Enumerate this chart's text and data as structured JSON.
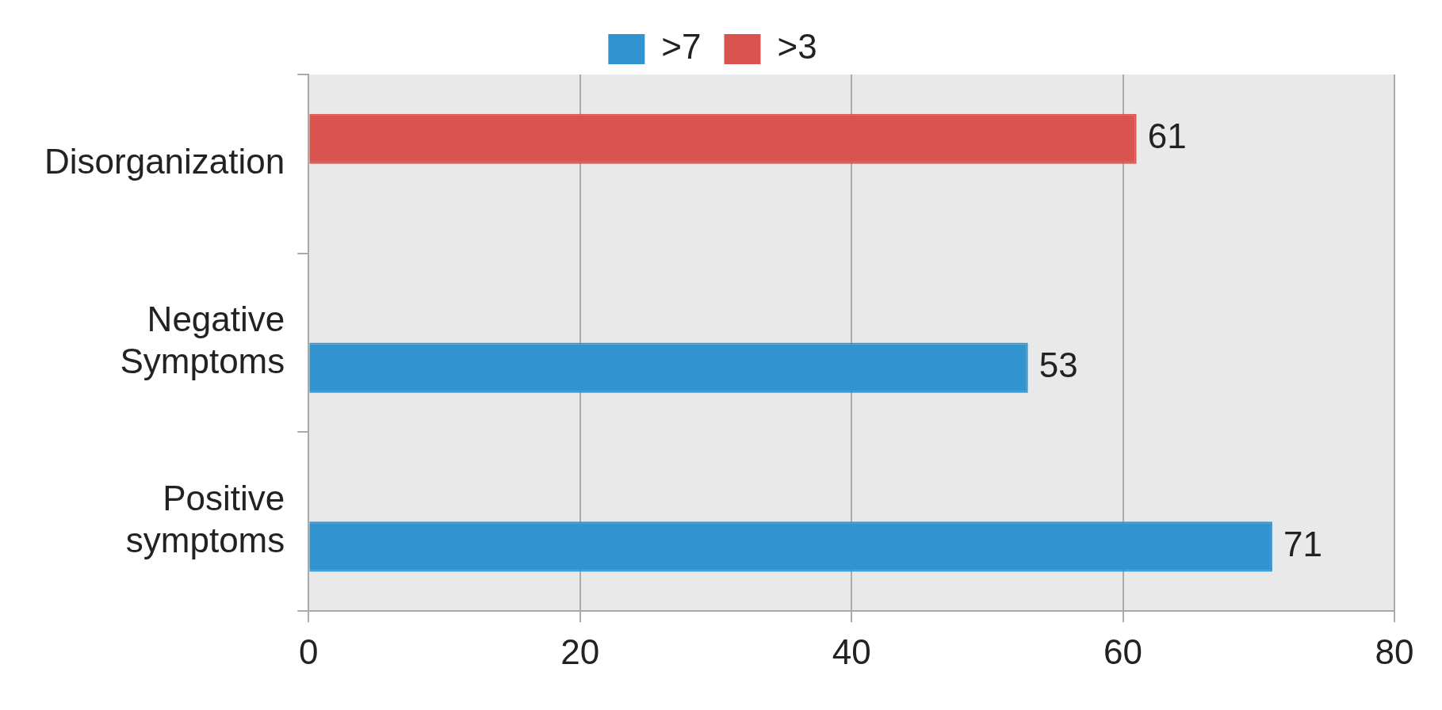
{
  "chart_data": {
    "type": "bar",
    "orientation": "horizontal",
    "categories": [
      "Disorganization",
      "Negative Symptoms",
      "Positive symptoms"
    ],
    "series": [
      {
        "name": ">7",
        "color": "#3193cf",
        "values": [
          null,
          53,
          71
        ]
      },
      {
        "name": ">3",
        "color": "#d9534f",
        "values": [
          61,
          null,
          null
        ]
      }
    ],
    "xlim": [
      0,
      80
    ],
    "xticks": [
      0,
      20,
      40,
      60,
      80
    ],
    "grid": "x",
    "legend": "top",
    "data_labels": true
  }
}
